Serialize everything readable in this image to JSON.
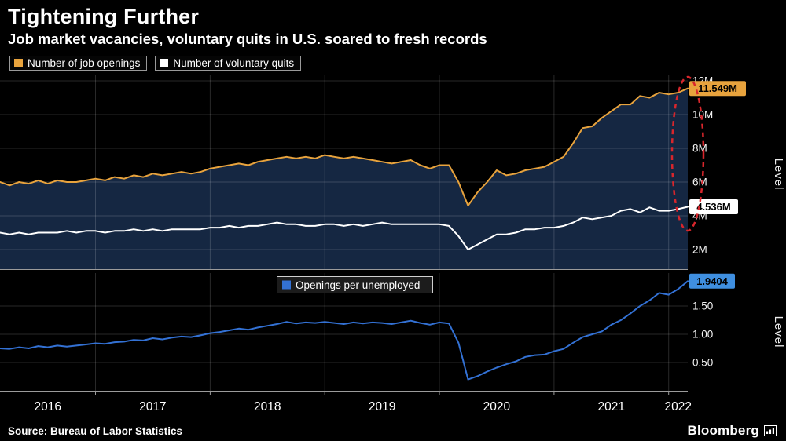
{
  "header": {
    "title": "Tightening Further",
    "subtitle": "Job market vacancies, voluntary quits in U.S. soared to fresh records"
  },
  "legend_top": [
    {
      "label": "Number of job openings",
      "color": "#e8a33d"
    },
    {
      "label": "Number of voluntary quits",
      "color": "#ffffff"
    }
  ],
  "footer": {
    "source": "Source: Bureau of Labor Statistics",
    "brand": "Bloomberg"
  },
  "chart_data": [
    {
      "type": "area",
      "description": "Monthly U.S. number of job openings (area/orange line) and number of voluntary quits (white line)",
      "x_freq": "monthly",
      "x_start": "2016-03",
      "x_end": "2022-03",
      "year_labels": [
        "2016",
        "2017",
        "2018",
        "2019",
        "2020",
        "2021",
        "2022"
      ],
      "ylabel": "Level",
      "ytick_values": [
        2,
        4,
        6,
        8,
        10,
        12
      ],
      "ytick_labels": [
        "2M",
        "4M",
        "6M",
        "8M",
        "10M",
        "12M"
      ],
      "ylim": [
        0.8,
        12.3
      ],
      "grid": true,
      "legend_position": "top-left",
      "series": [
        {
          "name": "Number of job openings",
          "color": "#e8a33d",
          "area_fill": "#152742",
          "end_label": "11.549M",
          "end_value": 11.549,
          "values": [
            6.0,
            5.8,
            6.0,
            5.9,
            6.1,
            5.9,
            6.1,
            6.0,
            6.0,
            6.1,
            6.2,
            6.1,
            6.3,
            6.2,
            6.4,
            6.3,
            6.5,
            6.4,
            6.5,
            6.6,
            6.5,
            6.6,
            6.8,
            6.9,
            7.0,
            7.1,
            7.0,
            7.2,
            7.3,
            7.4,
            7.5,
            7.4,
            7.5,
            7.4,
            7.6,
            7.5,
            7.4,
            7.5,
            7.4,
            7.3,
            7.2,
            7.1,
            7.2,
            7.3,
            7.0,
            6.8,
            7.0,
            7.0,
            6.0,
            4.6,
            5.4,
            6.0,
            6.7,
            6.4,
            6.5,
            6.7,
            6.8,
            6.9,
            7.2,
            7.5,
            8.3,
            9.2,
            9.3,
            9.8,
            10.2,
            10.6,
            10.6,
            11.1,
            11.0,
            11.3,
            11.2,
            11.3,
            11.549
          ]
        },
        {
          "name": "Number of voluntary quits",
          "color": "#ffffff",
          "end_label": "4.536M",
          "end_value": 4.536,
          "values": [
            3.0,
            2.9,
            3.0,
            2.9,
            3.0,
            3.0,
            3.0,
            3.1,
            3.0,
            3.1,
            3.1,
            3.0,
            3.1,
            3.1,
            3.2,
            3.1,
            3.2,
            3.1,
            3.2,
            3.2,
            3.2,
            3.2,
            3.3,
            3.3,
            3.4,
            3.3,
            3.4,
            3.4,
            3.5,
            3.6,
            3.5,
            3.5,
            3.4,
            3.4,
            3.5,
            3.5,
            3.4,
            3.5,
            3.4,
            3.5,
            3.6,
            3.5,
            3.5,
            3.5,
            3.5,
            3.5,
            3.5,
            3.4,
            2.8,
            2.0,
            2.3,
            2.6,
            2.9,
            2.9,
            3.0,
            3.2,
            3.2,
            3.3,
            3.3,
            3.4,
            3.6,
            3.9,
            3.8,
            3.9,
            4.0,
            4.3,
            4.4,
            4.2,
            4.5,
            4.3,
            4.3,
            4.4,
            4.536
          ]
        }
      ],
      "annotation": {
        "shape": "dashed-ellipse",
        "color": "#d8262c",
        "note": "highlights record end values"
      }
    },
    {
      "type": "line",
      "legend": "Openings per unemployed",
      "x_freq": "monthly",
      "x_start": "2016-03",
      "x_end": "2022-03",
      "ylabel": "Level",
      "ytick_values": [
        0.5,
        1.0,
        1.5
      ],
      "ytick_labels": [
        "0.50",
        "1.00",
        "1.50"
      ],
      "ylim": [
        0,
        2.08
      ],
      "grid": true,
      "series": [
        {
          "name": "Openings per unemployed",
          "color": "#3371d4",
          "badge_color": "#3f8fe0",
          "end_label": "1.9404",
          "end_value": 1.9404,
          "values": [
            0.75,
            0.74,
            0.77,
            0.75,
            0.79,
            0.77,
            0.8,
            0.78,
            0.8,
            0.82,
            0.84,
            0.83,
            0.86,
            0.87,
            0.9,
            0.89,
            0.93,
            0.91,
            0.94,
            0.96,
            0.95,
            0.98,
            1.02,
            1.04,
            1.07,
            1.1,
            1.08,
            1.12,
            1.15,
            1.18,
            1.22,
            1.19,
            1.21,
            1.2,
            1.22,
            1.2,
            1.18,
            1.21,
            1.19,
            1.21,
            1.2,
            1.18,
            1.21,
            1.24,
            1.2,
            1.17,
            1.21,
            1.19,
            0.85,
            0.2,
            0.26,
            0.34,
            0.41,
            0.47,
            0.52,
            0.6,
            0.63,
            0.64,
            0.7,
            0.74,
            0.85,
            0.95,
            1.0,
            1.05,
            1.17,
            1.25,
            1.37,
            1.5,
            1.6,
            1.73,
            1.7,
            1.8,
            1.9404
          ]
        }
      ]
    }
  ]
}
